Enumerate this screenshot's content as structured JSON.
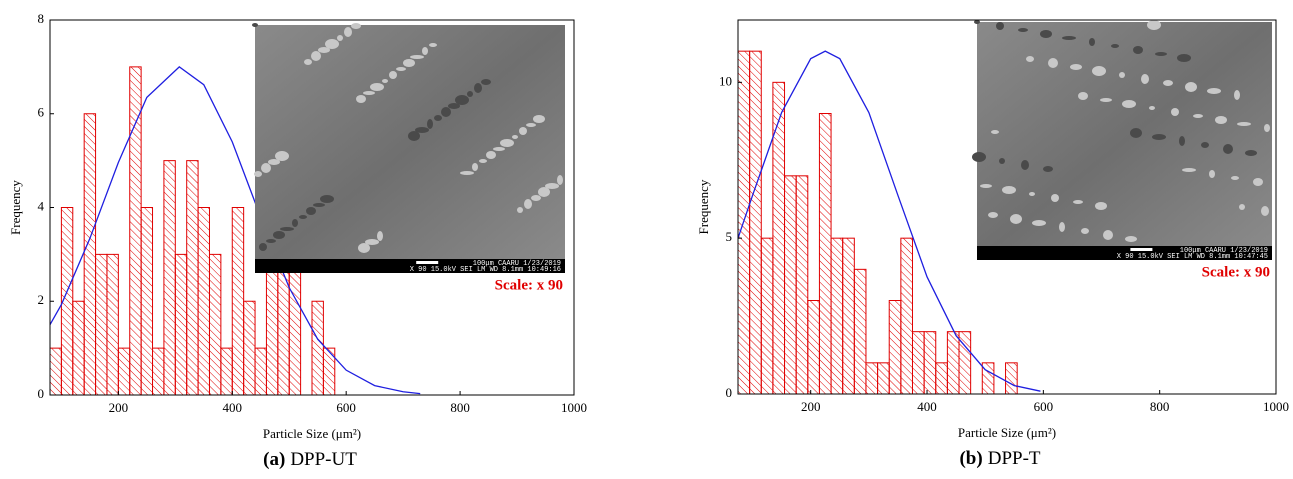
{
  "chart_data": [
    {
      "type": "histogram",
      "caption_label": "(a)",
      "caption": "DPP-UT",
      "xlabel": "Particle Size (μm²)",
      "ylabel": "Frequency",
      "bins": [
        80,
        100,
        120,
        140,
        160,
        180,
        200,
        220,
        240,
        260,
        280,
        300,
        320,
        340,
        360,
        380,
        400,
        420,
        440,
        460,
        480,
        500,
        520,
        540,
        560,
        580
      ],
      "values": [
        1,
        4,
        2,
        6,
        3,
        3,
        1,
        7,
        4,
        1,
        5,
        3,
        5,
        4,
        3,
        1,
        4,
        2,
        1,
        4,
        3,
        3,
        0,
        2,
        1
      ],
      "color": "#e00000",
      "fit": {
        "color": "#1f1fe0",
        "x": [
          80,
          100,
          150,
          200,
          250,
          307,
          350,
          400,
          450,
          500,
          550,
          600,
          650,
          700,
          730
        ],
        "values": [
          1.5,
          1.93,
          3.34,
          4.96,
          6.35,
          7,
          6.62,
          5.4,
          3.79,
          2.29,
          1.19,
          0.53,
          0.2,
          0.07,
          0.03
        ]
      },
      "xlim": [
        80,
        1000
      ],
      "xticks": [
        200,
        400,
        600,
        800,
        1000
      ],
      "ylim": [
        0,
        8
      ],
      "yticks": [
        0,
        2,
        4,
        6,
        8
      ],
      "inset": {
        "scale_label": "Scale: x 90",
        "info_top": "100μm CAARU   1/23/2019",
        "info_bottom": "X 90      15.0kV SEI     LM     WD 8.1mm  10:49:16"
      }
    },
    {
      "type": "histogram",
      "caption_label": "(b)",
      "caption": "DPP-T",
      "xlabel": "Particle Size (μm²)",
      "ylabel": "Frequency",
      "bins": [
        75,
        95,
        115,
        135,
        155,
        175,
        195,
        215,
        235,
        255,
        275,
        295,
        315,
        335,
        355,
        375,
        395,
        415,
        435,
        455,
        475,
        495,
        515,
        535,
        555
      ],
      "values": [
        11,
        11,
        5,
        10,
        7,
        7,
        3,
        9,
        5,
        5,
        4,
        1,
        1,
        3,
        5,
        2,
        2,
        1,
        2,
        2,
        0,
        1,
        0,
        1
      ],
      "color": "#e00000",
      "fit": {
        "color": "#1f1fe0",
        "x": [
          75,
          100,
          150,
          200,
          225,
          250,
          300,
          350,
          400,
          450,
          500,
          550,
          595
        ],
        "values": [
          5,
          6.37,
          9.03,
          10.76,
          11,
          10.76,
          9.03,
          6.37,
          3.76,
          1.87,
          0.78,
          0.27,
          0.09
        ]
      },
      "xlim": [
        75,
        1000
      ],
      "xticks": [
        200,
        400,
        600,
        800,
        1000
      ],
      "ylim": [
        0,
        12
      ],
      "yticks": [
        0,
        5,
        10
      ],
      "inset": {
        "scale_label": "Scale: x 90",
        "info_top": "100μm CAARU   1/23/2019",
        "info_bottom": "X 90      15.0kV SEI     LM     WD 8.1mm  10:47:45"
      }
    }
  ]
}
